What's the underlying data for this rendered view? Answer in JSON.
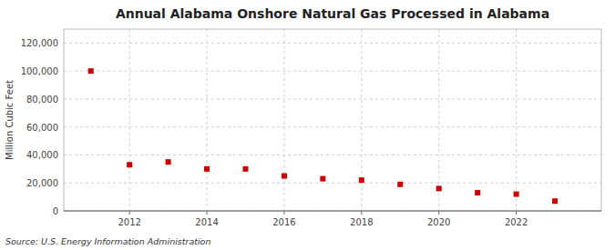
{
  "chart_data": {
    "type": "scatter",
    "title": "Annual Alabama Onshore Natural Gas Processed in Alabama",
    "ylabel": "Million Cubic Feet",
    "source": "Source: U.S. Energy Information Administration",
    "x": [
      2011,
      2012,
      2013,
      2014,
      2015,
      2016,
      2017,
      2018,
      2019,
      2020,
      2021,
      2022,
      2023
    ],
    "values": [
      100000,
      33000,
      35000,
      30000,
      30000,
      25000,
      23000,
      22000,
      19000,
      16000,
      13000,
      12000,
      7000
    ],
    "color": "#cc0000",
    "marker": "square",
    "xlim": [
      2010.3,
      2024.2
    ],
    "xticks": [
      2012,
      2014,
      2016,
      2018,
      2020,
      2022
    ],
    "ylim": [
      0,
      130000
    ],
    "yticks": [
      0,
      {
        "value": 20000,
        "label": "20,000"
      },
      {
        "value": 40000,
        "label": "40,000"
      },
      {
        "value": 60000,
        "label": "60,000"
      },
      {
        "value": 80000,
        "label": "80,000"
      },
      {
        "value": 100000,
        "label": "100,000"
      },
      {
        "value": 120000,
        "label": "120,000"
      }
    ],
    "grid": true
  }
}
